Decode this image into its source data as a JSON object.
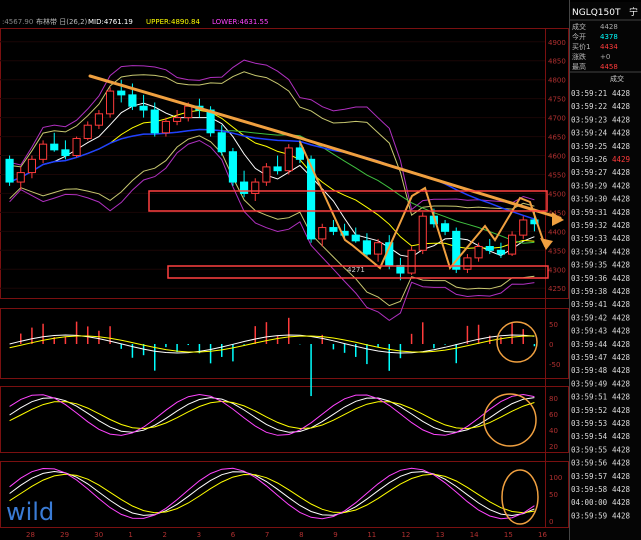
{
  "chart_data": {
    "type": "candlestick",
    "indicator_bar": {
      "prefix": ":4567.90",
      "label": "布林带 日(26,2)",
      "mid": "MID:4761.19",
      "upper": "UPPER:4890.84",
      "lower": "LOWER:4631.55"
    },
    "price_axis": {
      "ticks": [
        "4900",
        "4850",
        "4800",
        "4750",
        "4700",
        "4650",
        "4600",
        "4550",
        "4500",
        "4450",
        "4400",
        "4350",
        "4300",
        "4250"
      ],
      "ylim": [
        4240,
        4910
      ]
    },
    "sub_axes": [
      {
        "ticks": [
          "50",
          "0",
          "-50"
        ]
      },
      {
        "ticks": [
          "80",
          "60",
          "40",
          "20"
        ]
      },
      {
        "ticks": [
          "100",
          "50",
          "0"
        ]
      }
    ],
    "x_ticks": [
      "28",
      "29",
      "30",
      "1",
      "2",
      "3",
      "6",
      "7",
      "8",
      "9",
      "11",
      "12",
      "13",
      "14",
      "15",
      "16"
    ],
    "low_label": "4271",
    "watermark": "wild",
    "candles": [
      [
        4590,
        4600,
        4520,
        4530
      ],
      [
        4530,
        4570,
        4510,
        4555
      ],
      [
        4555,
        4600,
        4540,
        4590
      ],
      [
        4590,
        4640,
        4580,
        4630
      ],
      [
        4630,
        4660,
        4610,
        4615
      ],
      [
        4615,
        4640,
        4590,
        4600
      ],
      [
        4600,
        4650,
        4595,
        4645
      ],
      [
        4645,
        4690,
        4640,
        4680
      ],
      [
        4680,
        4720,
        4670,
        4710
      ],
      [
        4710,
        4780,
        4700,
        4770
      ],
      [
        4770,
        4800,
        4740,
        4760
      ],
      [
        4760,
        4790,
        4720,
        4730
      ],
      [
        4730,
        4760,
        4700,
        4720
      ],
      [
        4720,
        4740,
        4650,
        4660
      ],
      [
        4660,
        4700,
        4650,
        4690
      ],
      [
        4690,
        4720,
        4680,
        4700
      ],
      [
        4700,
        4740,
        4690,
        4730
      ],
      [
        4730,
        4750,
        4700,
        4720
      ],
      [
        4720,
        4730,
        4650,
        4660
      ],
      [
        4660,
        4680,
        4600,
        4610
      ],
      [
        4610,
        4620,
        4520,
        4530
      ],
      [
        4530,
        4560,
        4490,
        4500
      ],
      [
        4500,
        4540,
        4480,
        4530
      ],
      [
        4530,
        4580,
        4520,
        4570
      ],
      [
        4570,
        4600,
        4550,
        4560
      ],
      [
        4560,
        4630,
        4550,
        4620
      ],
      [
        4620,
        4640,
        4580,
        4590
      ],
      [
        4590,
        4600,
        4370,
        4380
      ],
      [
        4380,
        4420,
        4360,
        4410
      ],
      [
        4410,
        4430,
        4390,
        4400
      ],
      [
        4400,
        4420,
        4380,
        4390
      ],
      [
        4390,
        4410,
        4370,
        4375
      ],
      [
        4375,
        4395,
        4330,
        4340
      ],
      [
        4340,
        4380,
        4320,
        4370
      ],
      [
        4370,
        4390,
        4300,
        4310
      ],
      [
        4310,
        4330,
        4271,
        4290
      ],
      [
        4290,
        4360,
        4285,
        4350
      ],
      [
        4350,
        4450,
        4340,
        4440
      ],
      [
        4440,
        4460,
        4410,
        4420
      ],
      [
        4420,
        4430,
        4390,
        4400
      ],
      [
        4400,
        4410,
        4290,
        4300
      ],
      [
        4300,
        4340,
        4290,
        4330
      ],
      [
        4330,
        4370,
        4320,
        4360
      ],
      [
        4360,
        4380,
        4340,
        4350
      ],
      [
        4350,
        4370,
        4330,
        4340
      ],
      [
        4340,
        4400,
        4335,
        4390
      ],
      [
        4390,
        4440,
        4380,
        4430
      ],
      [
        4430,
        4460,
        4400,
        4420
      ]
    ],
    "up_color": "#ff3b3b",
    "down_color": "#00ffff"
  },
  "side_panel": {
    "symbol": "NGLQ150T",
    "suffix": "宁",
    "quotes": [
      {
        "label": "成交",
        "value": "4428",
        "color": "#aaaaaa"
      },
      {
        "label": "今开",
        "value": "4378",
        "color": "#00ffff"
      },
      {
        "label": "买价1",
        "value": "4434",
        "color": "#ff3b3b"
      },
      {
        "label": "涨跌",
        "value": "+0",
        "color": "#aaaaaa"
      },
      {
        "label": "最高",
        "value": "4458",
        "color": "#ff3b3b"
      }
    ],
    "ticks_header": "成交",
    "ticks": [
      {
        "time": "03:59:21",
        "price": "4428"
      },
      {
        "time": "03:59:22",
        "price": "4428"
      },
      {
        "time": "03:59:23",
        "price": "4428"
      },
      {
        "time": "03:59:24",
        "price": "4428"
      },
      {
        "time": "03:59:25",
        "price": "4428"
      },
      {
        "time": "03:59:26",
        "price": "4429"
      },
      {
        "time": "03:59:27",
        "price": "4428"
      },
      {
        "time": "03:59:29",
        "price": "4428"
      },
      {
        "time": "03:59:30",
        "price": "4428"
      },
      {
        "time": "03:59:31",
        "price": "4428"
      },
      {
        "time": "03:59:32",
        "price": "4428"
      },
      {
        "time": "03:59:33",
        "price": "4428"
      },
      {
        "time": "03:59:34",
        "price": "4428"
      },
      {
        "time": "03:59:35",
        "price": "4428"
      },
      {
        "time": "03:59:36",
        "price": "4428"
      },
      {
        "time": "03:59:38",
        "price": "4428"
      },
      {
        "time": "03:59:41",
        "price": "4428"
      },
      {
        "time": "03:59:42",
        "price": "4428"
      },
      {
        "time": "03:59:43",
        "price": "4428"
      },
      {
        "time": "03:59:44",
        "price": "4428"
      },
      {
        "time": "03:59:47",
        "price": "4428"
      },
      {
        "time": "03:59:48",
        "price": "4428"
      },
      {
        "time": "03:59:49",
        "price": "4428"
      },
      {
        "time": "03:59:51",
        "price": "4428"
      },
      {
        "time": "03:59:52",
        "price": "4428"
      },
      {
        "time": "03:59:53",
        "price": "4428"
      },
      {
        "time": "03:59:54",
        "price": "4428"
      },
      {
        "time": "03:59:55",
        "price": "4428"
      },
      {
        "time": "03:59:56",
        "price": "4428"
      },
      {
        "time": "03:59:57",
        "price": "4428"
      },
      {
        "time": "03:59:58",
        "price": "4428"
      },
      {
        "time": "04:00:00",
        "price": "4428"
      },
      {
        "time": "03:59:59",
        "price": "4428"
      }
    ]
  }
}
